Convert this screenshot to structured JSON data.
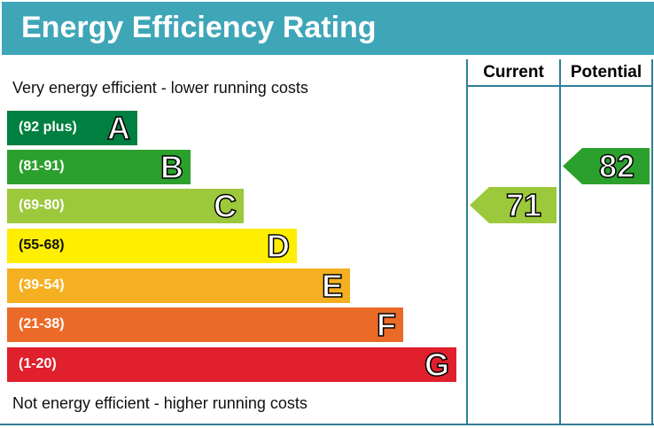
{
  "title": "Energy Efficiency Rating",
  "columns": {
    "current": "Current",
    "potential": "Potential"
  },
  "top_note": "Very energy efficient - lower running costs",
  "bottom_note": "Not energy efficient - higher running costs",
  "chart_data": {
    "type": "bar",
    "categories": [
      "A",
      "B",
      "C",
      "D",
      "E",
      "F",
      "G"
    ],
    "ranges": [
      "(92 plus)",
      "(81-91)",
      "(69-80)",
      "(55-68)",
      "(39-54)",
      "(21-38)",
      "(1-20)"
    ],
    "colors": [
      "#008040",
      "#2ca02c",
      "#9cc83c",
      "#ffee00",
      "#f4b020",
      "#ec6a28",
      "#e0202c"
    ],
    "current": {
      "value": 71,
      "band": "C",
      "color": "#9cc83c"
    },
    "potential": {
      "value": 82,
      "band": "B",
      "color": "#2ca02c"
    }
  }
}
